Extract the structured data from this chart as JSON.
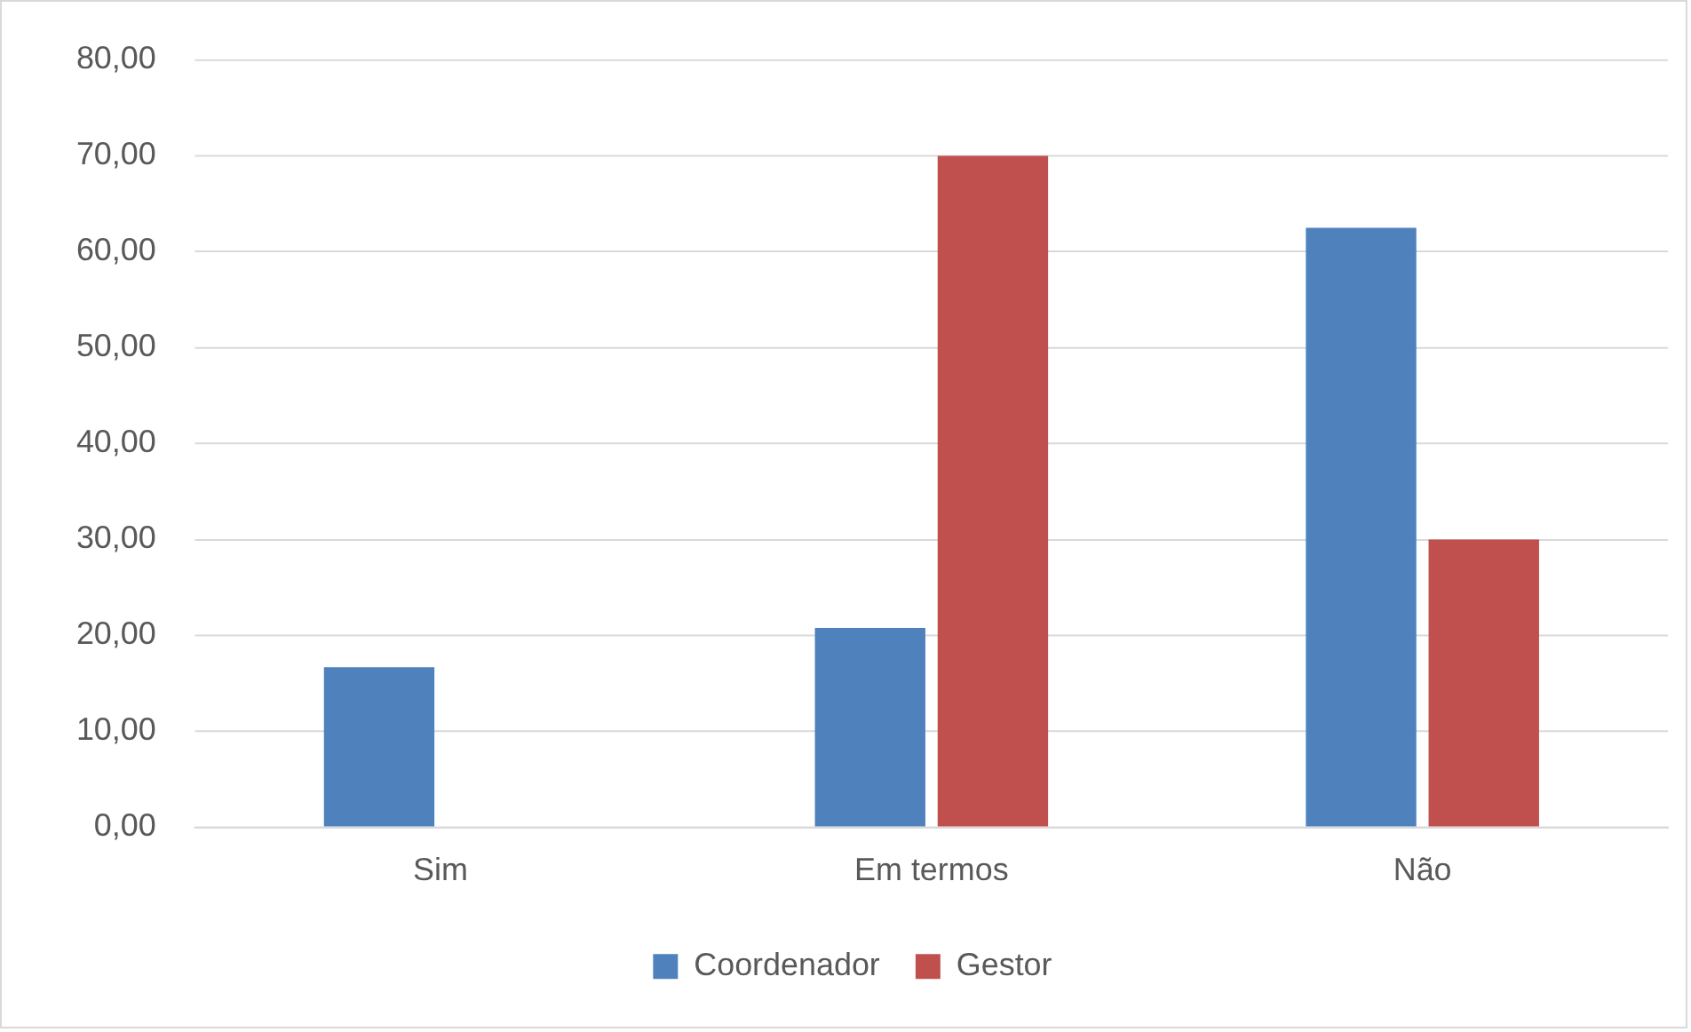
{
  "chart_data": {
    "type": "bar",
    "categories": [
      "Sim",
      "Em termos",
      "Não"
    ],
    "series": [
      {
        "name": "Coordenador",
        "color": "#4f81bd",
        "values": [
          16.7,
          20.8,
          62.5
        ]
      },
      {
        "name": "Gestor",
        "color": "#c0504d",
        "values": [
          0,
          70,
          30
        ]
      }
    ],
    "ylim": [
      0,
      80
    ],
    "yticks": [
      {
        "value": 0,
        "label": "0,00"
      },
      {
        "value": 10,
        "label": "10,00"
      },
      {
        "value": 20,
        "label": "20,00"
      },
      {
        "value": 30,
        "label": "30,00"
      },
      {
        "value": 40,
        "label": "40,00"
      },
      {
        "value": 50,
        "label": "50,00"
      },
      {
        "value": 60,
        "label": "60,00"
      },
      {
        "value": 70,
        "label": "70,00"
      },
      {
        "value": 80,
        "label": "80,00"
      }
    ],
    "grid": "y",
    "legend": "bottom"
  }
}
